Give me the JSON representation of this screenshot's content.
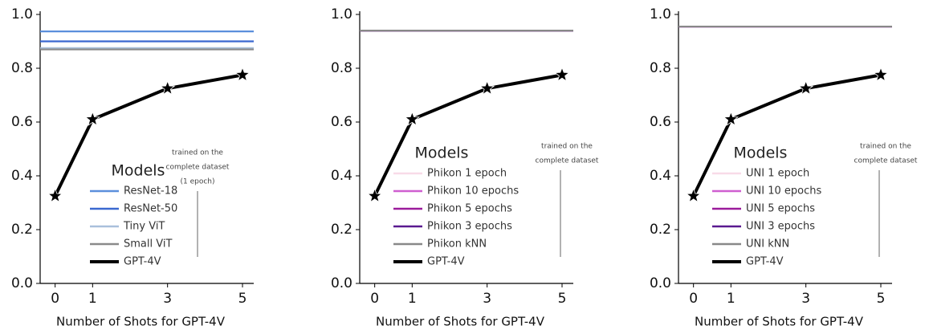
{
  "chart_data": [
    {
      "type": "line",
      "xlabel": "Number of Shots for GPT-4V",
      "xlim": [
        -0.4,
        5.3
      ],
      "ylim": [
        0,
        1
      ],
      "xticks": [
        0,
        1,
        3,
        5
      ],
      "yticks": [
        {
          "value": 0,
          "label": "0.0"
        },
        0.2,
        0.4,
        0.6,
        0.8,
        {
          "value": 1,
          "label": "1.0"
        }
      ],
      "x": [
        0,
        1,
        3,
        5
      ],
      "hlines": [
        {
          "name": "ResNet-18",
          "color": "#5b8fdc",
          "value": 0.937
        },
        {
          "name": "ResNet-50",
          "color": "#3a68d0",
          "value": 0.9
        },
        {
          "name": "Tiny ViT",
          "color": "#a9c0dc",
          "value": 0.875
        },
        {
          "name": "Small ViT",
          "color": "#8a8a8a",
          "value": 0.87
        }
      ],
      "series": [
        {
          "name": "GPT-4V",
          "color": "#000000",
          "values": [
            0.325,
            0.61,
            0.725,
            0.775
          ]
        }
      ],
      "legend_title": "Models",
      "annotation": [
        "trained on the",
        "complete dataset",
        "(1 epoch)"
      ]
    },
    {
      "type": "line",
      "xlabel": "Number of Shots for GPT-4V",
      "xlim": [
        -0.4,
        5.3
      ],
      "ylim": [
        0,
        1
      ],
      "xticks": [
        0,
        1,
        3,
        5
      ],
      "yticks": [
        {
          "value": 0,
          "label": "0.0"
        },
        0.2,
        0.4,
        0.6,
        0.8,
        {
          "value": 1,
          "label": "1.0"
        }
      ],
      "x": [
        0,
        1,
        3,
        5
      ],
      "hlines": [
        {
          "name": "Phikon 1 epoch",
          "color": "#f8dbe8",
          "value": 0.94
        },
        {
          "name": "Phikon 10 epochs",
          "color": "#cf5fd0",
          "value": 0.94
        },
        {
          "name": "Phikon 5 epochs",
          "color": "#9b1c9b",
          "value": 0.94
        },
        {
          "name": "Phikon 3 epochs",
          "color": "#5a1a90",
          "value": 0.94
        },
        {
          "name": "Phikon kNN",
          "color": "#888888",
          "value": 0.94
        }
      ],
      "series": [
        {
          "name": "GPT-4V",
          "color": "#000000",
          "values": [
            0.325,
            0.61,
            0.725,
            0.775
          ]
        }
      ],
      "legend_title": "Models",
      "annotation": [
        "trained on the",
        "complete dataset"
      ]
    },
    {
      "type": "line",
      "xlabel": "Number of Shots for GPT-4V",
      "xlim": [
        -0.4,
        5.3
      ],
      "ylim": [
        0,
        1
      ],
      "xticks": [
        0,
        1,
        3,
        5
      ],
      "yticks": [
        {
          "value": 0,
          "label": "0.0"
        },
        0.2,
        0.4,
        0.6,
        0.8,
        {
          "value": 1,
          "label": "1.0"
        }
      ],
      "x": [
        0,
        1,
        3,
        5
      ],
      "hlines": [
        {
          "name": "UNI 1 epoch",
          "color": "#f8dbe8",
          "value": 0.955
        },
        {
          "name": "UNI 10 epochs",
          "color": "#cf5fd0",
          "value": 0.955
        },
        {
          "name": "UNI 5 epochs",
          "color": "#9b1c9b",
          "value": 0.955
        },
        {
          "name": "UNI 3 epochs",
          "color": "#5a1a90",
          "value": 0.955
        },
        {
          "name": "UNI kNN",
          "color": "#888888",
          "value": 0.955
        }
      ],
      "series": [
        {
          "name": "GPT-4V",
          "color": "#000000",
          "values": [
            0.325,
            0.61,
            0.725,
            0.775
          ]
        }
      ],
      "legend_title": "Models",
      "annotation": [
        "trained on the",
        "complete dataset"
      ]
    }
  ]
}
